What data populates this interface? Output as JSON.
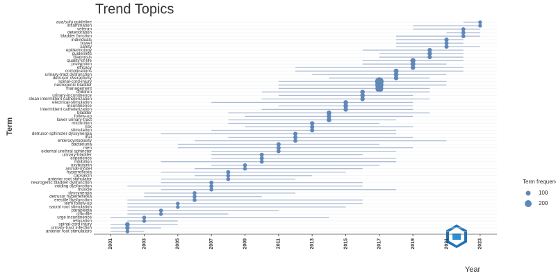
{
  "chart_data": {
    "type": "trend",
    "title": "Trend Topics",
    "x_label": "Year",
    "y_label": "Term",
    "legend_title": "Term frequency",
    "legend_sizes": [
      100,
      200
    ],
    "line_color": "#aebcd3",
    "dot_color": "#5f87b8",
    "grid": true,
    "xlim": [
      2000,
      2024
    ],
    "xticks": [
      2001,
      2003,
      2005,
      2007,
      2009,
      2011,
      2013,
      2015,
      2017,
      2019,
      2021,
      2023
    ],
    "categories": [
      "aua/sufu guideline",
      "inflammation",
      "veteran",
      "deterioration",
      "bladder function",
      "individuals",
      "bowel",
      "safety",
      "epidemiology",
      "guidelines",
      "diagnosis",
      "quality-of-life",
      "prevention",
      "efficacy",
      "complications",
      "urinary-tract dysfunction",
      "detrusor overactivity",
      "spinal-cord-injury",
      "neurogenic bladder",
      "management",
      "children",
      "urinary-incontinence",
      "clean intermittent catheterization",
      "electrical-stimulation",
      "incontinence",
      "intermittent catheterization",
      "bladder",
      "follow-up",
      "lower urinary-tract",
      "micturition",
      "risk",
      "stimulation",
      "detrusor-sphincter dyssynergia",
      "trial",
      "enterocystoplasty",
      "bacteriuria",
      "men",
      "external urethral sphincter",
      "urinary-bladder",
      "experience",
      "inhibition",
      "oxybutynin",
      "animal-model",
      "hyperreflexia",
      "capsaicin",
      "anterior root stimulator",
      "neurogenic bladder dysfunction",
      "voiding dysfunction",
      "muscle",
      "dyssynergia",
      "detrusor hyperreflexia",
      "erectile dysfunction",
      "term follow-up",
      "sacral root stimulation",
      "paraplegia",
      "chloride",
      "urge incontinence",
      "relaxation",
      "spinal-cord injury",
      "urinary-tract infection",
      "anterior root stimulators"
    ],
    "values": [
      2023,
      2023,
      2022,
      2022,
      2022,
      2021,
      2021,
      2021,
      2020,
      2020,
      2020,
      2019,
      2019,
      2019,
      2018,
      2018,
      2018,
      2017,
      2017,
      2017,
      2016,
      2016,
      2016,
      2015,
      2015,
      2015,
      2014,
      2014,
      2014,
      2013,
      2013,
      2013,
      2012,
      2012,
      2012,
      2011,
      2011,
      2011,
      2010,
      2010,
      2010,
      2009,
      2009,
      2008,
      2008,
      2008,
      2007,
      2007,
      2007,
      2006,
      2006,
      2006,
      2005,
      2005,
      2004,
      2004,
      2003,
      2003,
      2002,
      2002,
      2002
    ],
    "low": [
      2022,
      2019,
      2019,
      2021,
      2018,
      2018,
      2018,
      2018,
      2016,
      2017,
      2017,
      2016,
      2016,
      2012,
      2012,
      2013,
      2014,
      2011,
      2011,
      2011,
      2010,
      2011,
      2010,
      2007,
      2011,
      2010,
      2008,
      2009,
      2008,
      2008,
      2009,
      2007,
      2004,
      2008,
      2006,
      2005,
      2005,
      2007,
      2007,
      2007,
      2004,
      2007,
      2006,
      2004,
      2006,
      2004,
      2004,
      2002,
      2004,
      2003,
      2003,
      2002,
      2002,
      2002,
      2002,
      2002,
      2001,
      2002,
      2001,
      2001,
      2001
    ],
    "high": [
      2023,
      2023,
      2023,
      2023,
      2023,
      2022,
      2022,
      2023,
      2022,
      2022,
      2022,
      2022,
      2021,
      2022,
      2022,
      2021,
      2020,
      2021,
      2021,
      2020,
      2020,
      2019,
      2020,
      2019,
      2019,
      2019,
      2020,
      2019,
      2018,
      2017,
      2019,
      2018,
      2018,
      2019,
      2021,
      2017,
      2019,
      2018,
      2016,
      2018,
      2018,
      2017,
      2016,
      2015,
      2013,
      2012,
      2016,
      2016,
      2018,
      2012,
      2010,
      2016,
      2016,
      2015,
      2011,
      2008,
      2014,
      2005,
      2005,
      2004,
      2003
    ],
    "sizes": [
      60,
      60,
      70,
      70,
      70,
      75,
      70,
      75,
      80,
      80,
      75,
      110,
      100,
      90,
      100,
      90,
      85,
      300,
      280,
      260,
      90,
      90,
      85,
      90,
      90,
      85,
      95,
      85,
      90,
      80,
      75,
      75,
      75,
      70,
      70,
      75,
      75,
      70,
      70,
      70,
      70,
      65,
      60,
      70,
      65,
      65,
      70,
      70,
      65,
      65,
      65,
      65,
      60,
      60,
      65,
      60,
      60,
      60,
      90,
      80,
      60
    ]
  }
}
